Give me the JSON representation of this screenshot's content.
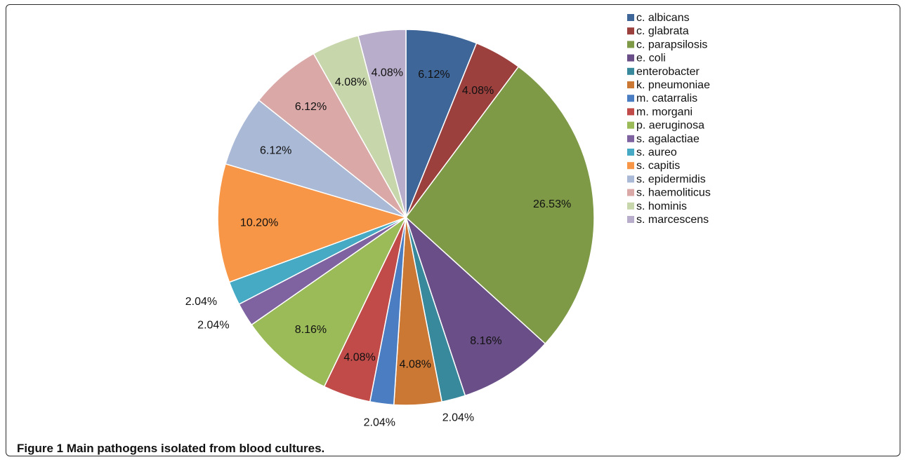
{
  "caption": {
    "figure_label": "Figure 1",
    "text": "Main pathogens isolated from blood cultures."
  },
  "chart_data": {
    "type": "pie",
    "title": "",
    "start_angle_deg": 0,
    "direction": "clockwise",
    "legend_position": "right",
    "slices": [
      {
        "label": "c. albicans",
        "value": 6.12,
        "display": "6.12%",
        "color": "#3F6699"
      },
      {
        "label": "c. glabrata",
        "value": 4.08,
        "display": "4.08%",
        "color": "#9C403E"
      },
      {
        "label": "c. parapsilosis",
        "value": 26.53,
        "display": "26.53%",
        "color": "#7E9A47"
      },
      {
        "label": "e. coli",
        "value": 8.16,
        "display": "8.16%",
        "color": "#6A4E87"
      },
      {
        "label": "enterobacter",
        "value": 2.04,
        "display": "2.04%",
        "color": "#38899C"
      },
      {
        "label": "k. pneumoniae",
        "value": 4.08,
        "display": "4.08%",
        "color": "#CB7834"
      },
      {
        "label": "m. catarralis",
        "value": 2.04,
        "display": "2.04%",
        "color": "#4A7DC2"
      },
      {
        "label": "m. morgani",
        "value": 4.08,
        "display": "4.08%",
        "color": "#C04B48"
      },
      {
        "label": "p. aeruginosa",
        "value": 8.16,
        "display": "8.16%",
        "color": "#9BBB58"
      },
      {
        "label": "s. agalactiae",
        "value": 2.04,
        "display": "2.04%",
        "color": "#7F63A1"
      },
      {
        "label": "s. aureo",
        "value": 2.04,
        "display": "2.04%",
        "color": "#46AAC4"
      },
      {
        "label": "s. capitis",
        "value": 10.2,
        "display": "10.20%",
        "color": "#F79646"
      },
      {
        "label": "s. epidermidis",
        "value": 6.12,
        "display": "6.12%",
        "color": "#AAB9D6"
      },
      {
        "label": "s. haemoliticus",
        "value": 6.12,
        "display": "6.12%",
        "color": "#D9A8A7"
      },
      {
        "label": "s. hominis",
        "value": 4.08,
        "display": "4.08%",
        "color": "#C8D6AC"
      },
      {
        "label": "s. marcescens",
        "value": 4.08,
        "display": "4.08%",
        "color": "#B8ADCA"
      }
    ]
  }
}
